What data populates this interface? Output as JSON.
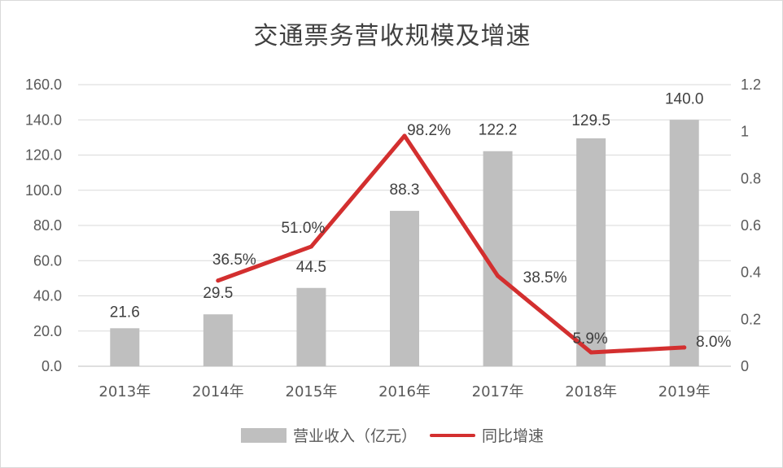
{
  "chart_data": {
    "type": "bar+line",
    "title": "交通票务营收规模及增速",
    "categories": [
      "2013年",
      "2014年",
      "2015年",
      "2016年",
      "2017年",
      "2018年",
      "2019年"
    ],
    "series": [
      {
        "name": "营业收入（亿元）",
        "type": "bar",
        "axis": "left",
        "values": [
          21.6,
          29.5,
          44.5,
          88.3,
          122.2,
          129.5,
          140.0
        ],
        "labels": [
          "21.6",
          "29.5",
          "44.5",
          "88.3",
          "122.2",
          "129.5",
          "140.0"
        ],
        "color": "#bfbfbf"
      },
      {
        "name": "同比增速",
        "type": "line",
        "axis": "right",
        "values": [
          null,
          0.365,
          0.51,
          0.982,
          0.385,
          0.059,
          0.08
        ],
        "labels": [
          "",
          "36.5%",
          "51.0%",
          "98.2%",
          "38.5%",
          "5.9%",
          "8.0%"
        ],
        "color": "#d32f2f"
      }
    ],
    "y_left": {
      "lim": [
        0,
        160
      ],
      "ticks": [
        "0.0",
        "20.0",
        "40.0",
        "60.0",
        "80.0",
        "100.0",
        "120.0",
        "140.0",
        "160.0"
      ]
    },
    "y_right": {
      "lim": [
        0,
        1.2
      ],
      "ticks": [
        "0",
        "0.2",
        "0.4",
        "0.6",
        "0.8",
        "1",
        "1.2"
      ]
    },
    "grid": true,
    "legend_position": "bottom"
  }
}
